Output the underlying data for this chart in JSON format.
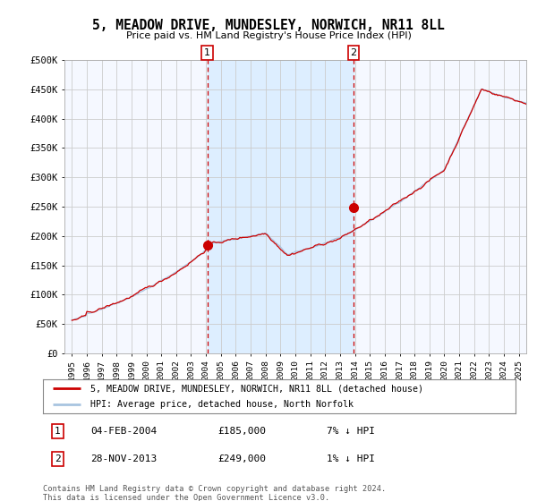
{
  "title": "5, MEADOW DRIVE, MUNDESLEY, NORWICH, NR11 8LL",
  "subtitle": "Price paid vs. HM Land Registry's House Price Index (HPI)",
  "legend_line1": "5, MEADOW DRIVE, MUNDESLEY, NORWICH, NR11 8LL (detached house)",
  "legend_line2": "HPI: Average price, detached house, North Norfolk",
  "annotation_footer": "Contains HM Land Registry data © Crown copyright and database right 2024.\nThis data is licensed under the Open Government Licence v3.0.",
  "purchase1": {
    "label": "1",
    "date": "04-FEB-2004",
    "price": 185000,
    "hpi_diff": "7% ↓ HPI"
  },
  "purchase2": {
    "label": "2",
    "date": "28-NOV-2013",
    "price": 249000,
    "hpi_diff": "1% ↓ HPI"
  },
  "purchase1_x": 2004.09,
  "purchase2_x": 2013.91,
  "ylim": [
    0,
    500000
  ],
  "xlim": [
    1994.5,
    2025.5
  ],
  "hpi_color": "#a8c4e0",
  "price_color": "#cc0000",
  "shade_color": "#ddeeff",
  "dot_color": "#cc0000",
  "vline_color": "#cc0000",
  "grid_color": "#cccccc",
  "bg_color": "#ffffff",
  "plot_bg_color": "#f5f8ff"
}
